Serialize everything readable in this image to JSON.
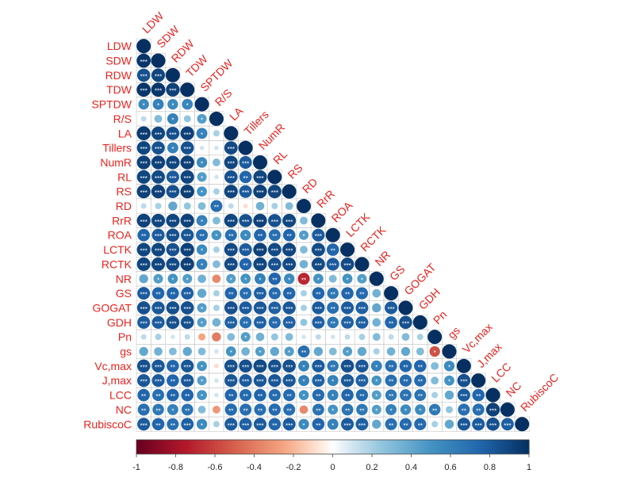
{
  "chart_data": {
    "type": "heatmap",
    "layout": "lower-triangle",
    "variables": [
      "LDW",
      "SDW",
      "RDW",
      "TDW",
      "SPTDW",
      "R/S",
      "LA",
      "Tillers",
      "NumR",
      "RL",
      "RS",
      "RD",
      "RrR",
      "ROA",
      "LCTK",
      "RCTK",
      "NR",
      "GS",
      "GOGAT",
      "GDH",
      "Pn",
      "gs",
      "Vc,max",
      "J,max",
      "LCC",
      "NC",
      "RubiscoC"
    ],
    "rows": [
      {
        "label": "LDW",
        "values": [
          1
        ]
      },
      {
        "label": "SDW",
        "values": [
          0.97,
          1
        ]
      },
      {
        "label": "RDW",
        "values": [
          0.85,
          0.9,
          1
        ]
      },
      {
        "label": "TDW",
        "values": [
          0.97,
          0.97,
          0.92,
          1
        ]
      },
      {
        "label": "SPTDW",
        "values": [
          0.55,
          0.6,
          0.55,
          0.58,
          1
        ]
      },
      {
        "label": "R/S",
        "values": [
          0.15,
          0.3,
          0.6,
          0.25,
          0.45,
          1
        ]
      },
      {
        "label": "LA",
        "values": [
          0.95,
          0.9,
          0.85,
          0.92,
          0.6,
          0.2,
          1
        ]
      },
      {
        "label": "Tillers",
        "values": [
          0.9,
          0.85,
          0.6,
          0.85,
          0.1,
          0.1,
          0.88,
          1
        ]
      },
      {
        "label": "NumR",
        "values": [
          0.92,
          0.92,
          0.9,
          0.93,
          0.55,
          0.3,
          0.9,
          0.8,
          1
        ]
      },
      {
        "label": "RL",
        "values": [
          0.9,
          0.88,
          0.8,
          0.9,
          0.45,
          0.1,
          0.85,
          0.75,
          0.9,
          1
        ]
      },
      {
        "label": "RS",
        "values": [
          0.92,
          0.92,
          0.85,
          0.93,
          0.5,
          0.2,
          0.9,
          0.8,
          0.92,
          0.9,
          1
        ]
      },
      {
        "label": "RD",
        "values": [
          0.15,
          0.2,
          0.4,
          0.25,
          0.3,
          0.7,
          0.15,
          -0.1,
          0.35,
          0.2,
          0.3,
          1
        ]
      },
      {
        "label": "RrR",
        "values": [
          0.92,
          0.9,
          0.9,
          0.92,
          0.6,
          0.3,
          0.9,
          0.85,
          0.92,
          0.85,
          0.9,
          0.3,
          1
        ]
      },
      {
        "label": "ROA",
        "values": [
          0.75,
          0.8,
          0.85,
          0.82,
          0.7,
          0.5,
          0.7,
          0.55,
          0.75,
          0.7,
          0.75,
          0.45,
          0.8,
          1
        ]
      },
      {
        "label": "LCTK",
        "values": [
          0.9,
          0.9,
          0.85,
          0.92,
          0.55,
          0.2,
          0.88,
          0.8,
          0.92,
          0.88,
          0.9,
          0.3,
          0.88,
          0.75,
          1
        ]
      },
      {
        "label": "RCTK",
        "values": [
          0.9,
          0.9,
          0.88,
          0.92,
          0.6,
          0.3,
          0.88,
          0.75,
          0.9,
          0.85,
          0.88,
          0.35,
          0.88,
          0.8,
          0.88,
          1
        ]
      },
      {
        "label": "NR",
        "values": [
          0.4,
          0.45,
          0.5,
          0.45,
          0.35,
          -0.35,
          0.45,
          0.5,
          0.6,
          0.75,
          0.55,
          -0.7,
          0.5,
          0.3,
          0.5,
          0.45,
          1
        ]
      },
      {
        "label": "GS",
        "values": [
          0.8,
          0.75,
          0.75,
          0.78,
          0.4,
          0.2,
          0.75,
          0.7,
          0.78,
          0.72,
          0.75,
          0.2,
          0.75,
          0.65,
          0.75,
          0.72,
          0.35,
          1
        ]
      },
      {
        "label": "GOGAT",
        "values": [
          0.85,
          0.82,
          0.85,
          0.85,
          0.45,
          0.2,
          0.85,
          0.8,
          0.82,
          0.78,
          0.82,
          0.2,
          0.8,
          0.7,
          0.8,
          0.78,
          0.4,
          0.8,
          1
        ]
      },
      {
        "label": "GDH",
        "values": [
          0.8,
          0.8,
          0.85,
          0.85,
          0.45,
          0.35,
          0.78,
          0.7,
          0.78,
          0.72,
          0.78,
          0.25,
          0.78,
          0.65,
          0.78,
          0.78,
          0.35,
          0.75,
          0.85,
          1
        ]
      },
      {
        "label": "Pn",
        "values": [
          0.15,
          0.2,
          0.1,
          0.15,
          -0.25,
          -0.4,
          0.3,
          0.45,
          0.35,
          0.25,
          0.3,
          0.1,
          0.15,
          0.1,
          0.15,
          0.2,
          0.3,
          0.15,
          0.3,
          0.2,
          1
        ]
      },
      {
        "label": "gs",
        "values": [
          0.4,
          0.35,
          0.3,
          0.4,
          0.3,
          0.1,
          0.5,
          0.35,
          0.45,
          0.4,
          0.45,
          0.7,
          0.4,
          0.3,
          0.45,
          0.4,
          0.2,
          0.35,
          0.4,
          0.3,
          -0.55,
          1
        ]
      },
      {
        "label": "Vc,max",
        "values": [
          0.85,
          0.82,
          0.75,
          0.82,
          0.5,
          -0.1,
          0.85,
          0.85,
          0.88,
          0.85,
          0.85,
          0.6,
          0.8,
          0.65,
          0.85,
          0.82,
          0.6,
          0.7,
          0.75,
          0.75,
          0.3,
          0.55,
          1
        ]
      },
      {
        "label": "J,max",
        "values": [
          0.82,
          0.8,
          0.75,
          0.82,
          0.45,
          0.1,
          0.82,
          0.8,
          0.82,
          0.82,
          0.82,
          0.6,
          0.78,
          0.6,
          0.82,
          0.78,
          0.5,
          0.7,
          0.72,
          0.72,
          0.3,
          0.5,
          0.85,
          1
        ]
      },
      {
        "label": "LCC",
        "values": [
          0.75,
          0.7,
          0.75,
          0.75,
          0.5,
          0.1,
          0.75,
          0.72,
          0.75,
          0.72,
          0.72,
          0.5,
          0.72,
          0.6,
          0.75,
          0.72,
          0.45,
          0.65,
          0.68,
          0.68,
          0.2,
          0.4,
          0.8,
          0.75,
          1
        ]
      },
      {
        "label": "NC",
        "values": [
          0.7,
          0.65,
          0.6,
          0.68,
          0.3,
          -0.3,
          0.72,
          0.7,
          0.7,
          0.72,
          0.7,
          -0.35,
          0.68,
          0.5,
          0.68,
          0.65,
          0.45,
          0.6,
          0.55,
          0.55,
          0.65,
          0.25,
          0.7,
          0.7,
          0.92,
          1
        ]
      },
      {
        "label": "RubiscoC",
        "values": [
          0.8,
          0.75,
          0.7,
          0.78,
          0.55,
          0.2,
          0.8,
          0.78,
          0.8,
          0.75,
          0.8,
          0.55,
          0.75,
          0.6,
          0.8,
          0.78,
          0.4,
          0.7,
          0.72,
          0.72,
          0.2,
          0.4,
          0.82,
          0.8,
          0.85,
          0.78,
          1
        ]
      }
    ],
    "significance_marks": [
      "*",
      "**",
      "***"
    ],
    "colorbar": {
      "min": -1,
      "max": 1,
      "ticks": [
        "-1",
        "-0.8",
        "-0.6",
        "-0.4",
        "-0.2",
        "0",
        "0.2",
        "0.4",
        "0.6",
        "0.8",
        "1"
      ],
      "colors": {
        "negative": "#67001f",
        "neutral": "#ffffff",
        "positive": "#053061"
      }
    },
    "label_color": "#e8231f",
    "grid": true
  }
}
